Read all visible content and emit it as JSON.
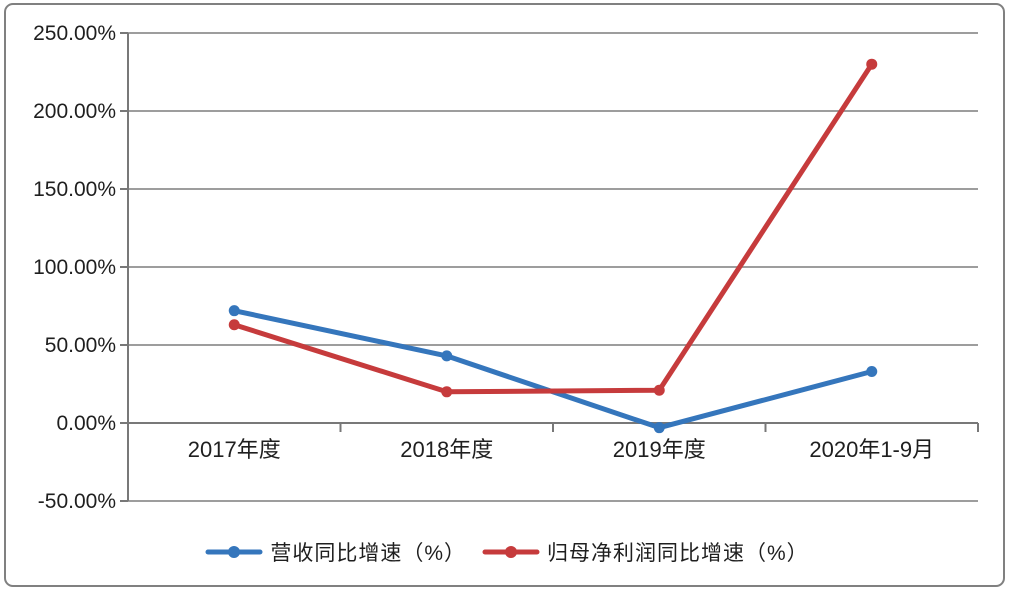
{
  "chart_data": {
    "type": "line",
    "title": "",
    "xlabel": "",
    "ylabel": "",
    "categories": [
      "2017年度",
      "2018年度",
      "2019年度",
      "2020年1-9月"
    ],
    "series": [
      {
        "name": "营收同比增速（%）",
        "color": "#3576bc",
        "values": [
          72,
          43,
          -3,
          33
        ]
      },
      {
        "name": "归母净利润同比增速（%）",
        "color": "#c63b3c",
        "values": [
          63,
          20,
          21,
          230
        ]
      }
    ],
    "ylim": [
      -50,
      250
    ],
    "ystep": 50,
    "yticks": [
      {
        "value": 250,
        "label": "250.00%"
      },
      {
        "value": 200,
        "label": "200.00%"
      },
      {
        "value": 150,
        "label": "150.00%"
      },
      {
        "value": 100,
        "label": "100.00%"
      },
      {
        "value": 50,
        "label": "50.00%"
      },
      {
        "value": 0,
        "label": "0.00%"
      },
      {
        "value": -50,
        "label": "-50.00%"
      }
    ],
    "grid": "horizontal",
    "legend_position": "bottom",
    "marker": "circle",
    "zero_axis_ticks_between_categories": true
  },
  "colors": {
    "series_blue": "#3576bc",
    "series_red": "#c63b3c",
    "gridline": "#8f8f8f",
    "axis": "#787878",
    "outer_border": "#808080",
    "text": "#1f1f1f",
    "background": "#ffffff"
  }
}
